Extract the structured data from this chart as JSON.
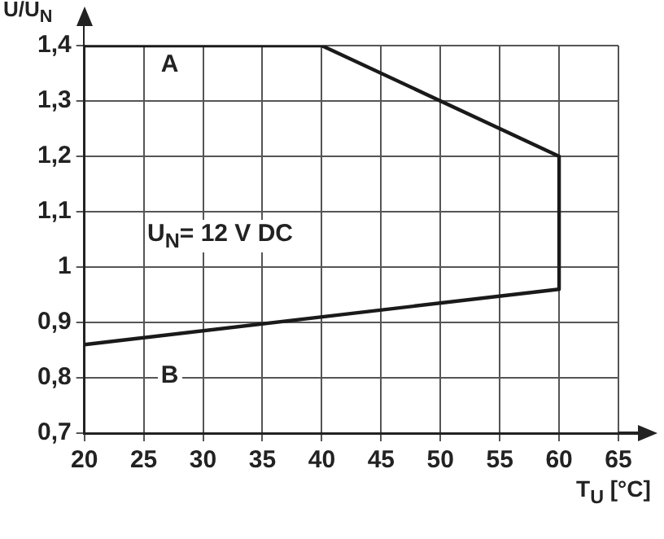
{
  "chart_data": {
    "type": "line",
    "xlabel": "T$_{U}$ [°C]",
    "ylabel": "U/U$_{N}$",
    "x": [
      20,
      40,
      60,
      60,
      20
    ],
    "series": [
      {
        "color": "#1a1a1a",
        "values": [
          1.4,
          1.4,
          1.2,
          0.96,
          0.86
        ]
      }
    ],
    "xlim": [
      20,
      65
    ],
    "xticks": [
      20,
      25,
      30,
      35,
      40,
      45,
      50,
      55,
      60,
      65
    ],
    "ylim": [
      0.7,
      1.4
    ],
    "yticks": [
      {
        "value": 0.7,
        "label": "0,7"
      },
      {
        "value": 0.8,
        "label": "0,8"
      },
      {
        "value": 0.9,
        "label": "0,9"
      },
      1,
      {
        "value": 1.1,
        "label": "1,1"
      },
      {
        "value": 1.2,
        "label": "1,2"
      },
      {
        "value": 1.3,
        "label": "1,3"
      },
      {
        "value": 1.4,
        "label": "1,4"
      }
    ],
    "annotations": [
      "A",
      "U$_{N}$= 12 V DC",
      "B"
    ],
    "grid": true,
    "legend": false,
    "marker": "none",
    "line_style": "solid"
  }
}
